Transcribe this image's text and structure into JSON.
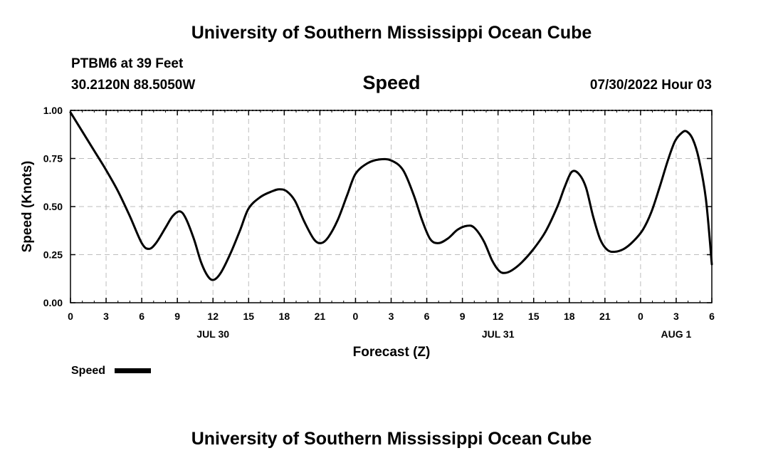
{
  "header": {
    "title": "University of Southern Mississippi Ocean Cube",
    "station": "PTBM6 at 39 Feet",
    "location": "30.2120N  88.5050W",
    "datetime": "07/30/2022 Hour 03"
  },
  "footer": {
    "title": "University of Southern Mississippi Ocean Cube"
  },
  "chart_data": {
    "type": "line",
    "title": "Speed",
    "xlabel": "Forecast (Z)",
    "ylabel": "Speed (Knots)",
    "xlim": [
      0,
      54
    ],
    "ylim": [
      0,
      1
    ],
    "grid": true,
    "legend_position": "bottom-left",
    "x_ticks": [
      {
        "x": 0,
        "label": "0"
      },
      {
        "x": 3,
        "label": "3"
      },
      {
        "x": 6,
        "label": "6"
      },
      {
        "x": 9,
        "label": "9"
      },
      {
        "x": 12,
        "label": "12"
      },
      {
        "x": 15,
        "label": "15"
      },
      {
        "x": 18,
        "label": "18"
      },
      {
        "x": 21,
        "label": "21"
      },
      {
        "x": 24,
        "label": "0"
      },
      {
        "x": 27,
        "label": "3"
      },
      {
        "x": 30,
        "label": "6"
      },
      {
        "x": 33,
        "label": "9"
      },
      {
        "x": 36,
        "label": "12"
      },
      {
        "x": 39,
        "label": "15"
      },
      {
        "x": 42,
        "label": "18"
      },
      {
        "x": 45,
        "label": "21"
      },
      {
        "x": 48,
        "label": "0"
      },
      {
        "x": 51,
        "label": "3"
      },
      {
        "x": 54,
        "label": "6"
      }
    ],
    "date_labels": [
      {
        "x": 12,
        "label": "JUL 30"
      },
      {
        "x": 36,
        "label": "JUL 31"
      },
      {
        "x": 51,
        "label": "AUG 1"
      }
    ],
    "y_ticks": [
      {
        "y": 0,
        "label": "0.00"
      },
      {
        "y": 0.25,
        "label": "0.25"
      },
      {
        "y": 0.5,
        "label": "0.50"
      },
      {
        "y": 0.75,
        "label": "0.75"
      },
      {
        "y": 1,
        "label": "1.00"
      }
    ],
    "series": [
      {
        "name": "Speed",
        "color": "#000000",
        "points": [
          [
            0,
            0.99
          ],
          [
            1,
            0.89
          ],
          [
            2,
            0.79
          ],
          [
            3,
            0.69
          ],
          [
            4,
            0.58
          ],
          [
            5,
            0.45
          ],
          [
            6,
            0.31
          ],
          [
            6.6,
            0.28
          ],
          [
            7.2,
            0.31
          ],
          [
            8,
            0.39
          ],
          [
            8.6,
            0.45
          ],
          [
            9.2,
            0.475
          ],
          [
            9.7,
            0.44
          ],
          [
            10.4,
            0.33
          ],
          [
            11,
            0.21
          ],
          [
            11.6,
            0.135
          ],
          [
            12.1,
            0.12
          ],
          [
            12.7,
            0.16
          ],
          [
            13.5,
            0.26
          ],
          [
            14.3,
            0.38
          ],
          [
            15,
            0.49
          ],
          [
            16,
            0.55
          ],
          [
            17,
            0.58
          ],
          [
            17.6,
            0.59
          ],
          [
            18.2,
            0.58
          ],
          [
            18.9,
            0.53
          ],
          [
            19.7,
            0.42
          ],
          [
            20.5,
            0.33
          ],
          [
            21.1,
            0.31
          ],
          [
            21.7,
            0.34
          ],
          [
            22.5,
            0.43
          ],
          [
            23.3,
            0.56
          ],
          [
            24,
            0.67
          ],
          [
            25,
            0.725
          ],
          [
            26,
            0.745
          ],
          [
            27,
            0.74
          ],
          [
            28,
            0.69
          ],
          [
            28.9,
            0.56
          ],
          [
            29.6,
            0.43
          ],
          [
            30.3,
            0.33
          ],
          [
            31,
            0.31
          ],
          [
            31.8,
            0.335
          ],
          [
            32.6,
            0.38
          ],
          [
            33.4,
            0.4
          ],
          [
            34,
            0.39
          ],
          [
            34.8,
            0.32
          ],
          [
            35.5,
            0.22
          ],
          [
            36.1,
            0.165
          ],
          [
            36.6,
            0.155
          ],
          [
            37.2,
            0.17
          ],
          [
            38,
            0.21
          ],
          [
            39,
            0.28
          ],
          [
            40,
            0.37
          ],
          [
            41,
            0.5
          ],
          [
            41.6,
            0.6
          ],
          [
            42.2,
            0.68
          ],
          [
            42.8,
            0.67
          ],
          [
            43.4,
            0.6
          ],
          [
            44,
            0.45
          ],
          [
            44.6,
            0.33
          ],
          [
            45.2,
            0.275
          ],
          [
            45.8,
            0.265
          ],
          [
            46.6,
            0.28
          ],
          [
            47.4,
            0.32
          ],
          [
            48.2,
            0.38
          ],
          [
            48.9,
            0.47
          ],
          [
            49.6,
            0.6
          ],
          [
            50.3,
            0.74
          ],
          [
            50.9,
            0.84
          ],
          [
            51.5,
            0.885
          ],
          [
            51.9,
            0.89
          ],
          [
            52.4,
            0.85
          ],
          [
            52.9,
            0.75
          ],
          [
            53.5,
            0.54
          ],
          [
            54,
            0.2
          ]
        ]
      }
    ]
  }
}
